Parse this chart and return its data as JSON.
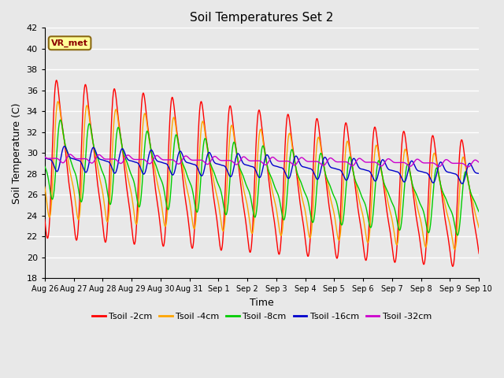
{
  "title": "Soil Temperatures Set 2",
  "xlabel": "Time",
  "ylabel": "Soil Temperature (C)",
  "ylim": [
    18,
    42
  ],
  "yticks": [
    18,
    20,
    22,
    24,
    26,
    28,
    30,
    32,
    34,
    36,
    38,
    40,
    42
  ],
  "annotation_text": "VR_met",
  "annotation_color": "#8B0000",
  "annotation_bg": "#FFFF99",
  "annotation_border": "#8B6914",
  "background_color": "#E8E8E8",
  "axes_bg": "#E8E8E8",
  "grid_color": "#FFFFFF",
  "series": [
    {
      "label": "Tsoil -2cm",
      "color": "#FF0000",
      "lw": 1.0
    },
    {
      "label": "Tsoil -4cm",
      "color": "#FFA500",
      "lw": 1.0
    },
    {
      "label": "Tsoil -8cm",
      "color": "#00CC00",
      "lw": 1.0
    },
    {
      "label": "Tsoil -16cm",
      "color": "#0000CC",
      "lw": 1.0
    },
    {
      "label": "Tsoil -32cm",
      "color": "#CC00CC",
      "lw": 1.0
    }
  ],
  "x_tick_labels": [
    "Aug 26",
    "Aug 27",
    "Aug 28",
    "Aug 29",
    "Aug 30",
    "Aug 31",
    "Sep 1",
    "Sep 2",
    "Sep 3",
    "Sep 4",
    "Sep 5",
    "Sep 6",
    "Sep 7",
    "Sep 8",
    "Sep 9",
    "Sep 10"
  ],
  "n_days": 15,
  "pts_per_day": 144,
  "mean_temp": 29.5,
  "amplitudes_start": [
    9.5,
    7.0,
    4.8,
    1.5,
    0.5
  ],
  "amplitudes_end": [
    7.5,
    5.5,
    3.8,
    1.2,
    0.4
  ],
  "phase_lags_days": [
    0.0,
    0.06,
    0.15,
    0.3,
    0.5
  ],
  "asymmetry": [
    3.0,
    2.5,
    2.0,
    1.3,
    1.0
  ],
  "mean_drift": [
    -4.5,
    -4.5,
    -4.5,
    -1.5,
    -0.5
  ]
}
